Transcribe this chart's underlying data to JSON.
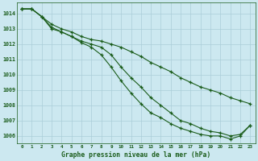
{
  "title": "Graphe pression niveau de la mer (hPa)",
  "background_color": "#cce8f0",
  "grid_color": "#aacdd8",
  "line_color": "#1a5c1a",
  "ylim": [
    1005.5,
    1014.7
  ],
  "yticks": [
    1006,
    1007,
    1008,
    1009,
    1010,
    1011,
    1012,
    1013,
    1014
  ],
  "x_labels": [
    "0",
    "1",
    "2",
    "3",
    "4",
    "5",
    "6",
    "7",
    "8",
    "9",
    "10",
    "11",
    "12",
    "13",
    "14",
    "15",
    "16",
    "17",
    "18",
    "19",
    "20",
    "21",
    "22",
    "23"
  ],
  "series": [
    [
      1014.3,
      1014.3,
      1013.8,
      1013.3,
      1013.0,
      1012.8,
      1012.5,
      1012.3,
      1012.2,
      1012.0,
      1011.8,
      1011.5,
      1011.2,
      1010.8,
      1010.5,
      1010.2,
      1009.8,
      1009.5,
      1009.2,
      1009.0,
      1008.8,
      1008.5,
      1008.3,
      1008.1
    ],
    [
      1014.3,
      1014.3,
      1013.8,
      1013.1,
      1012.8,
      1012.5,
      1012.2,
      1012.0,
      1011.8,
      1011.3,
      1010.5,
      1009.8,
      1009.2,
      1008.5,
      1008.0,
      1007.5,
      1007.0,
      1006.8,
      1006.5,
      1006.3,
      1006.2,
      1006.0,
      1006.1,
      1006.7
    ],
    [
      1014.3,
      1014.3,
      1013.8,
      1013.0,
      1012.8,
      1012.5,
      1012.1,
      1011.8,
      1011.3,
      1010.5,
      1009.6,
      1008.8,
      1008.1,
      1007.5,
      1007.2,
      1006.8,
      1006.5,
      1006.3,
      1006.1,
      1006.0,
      1006.0,
      1005.8,
      1006.0,
      1006.7
    ]
  ]
}
